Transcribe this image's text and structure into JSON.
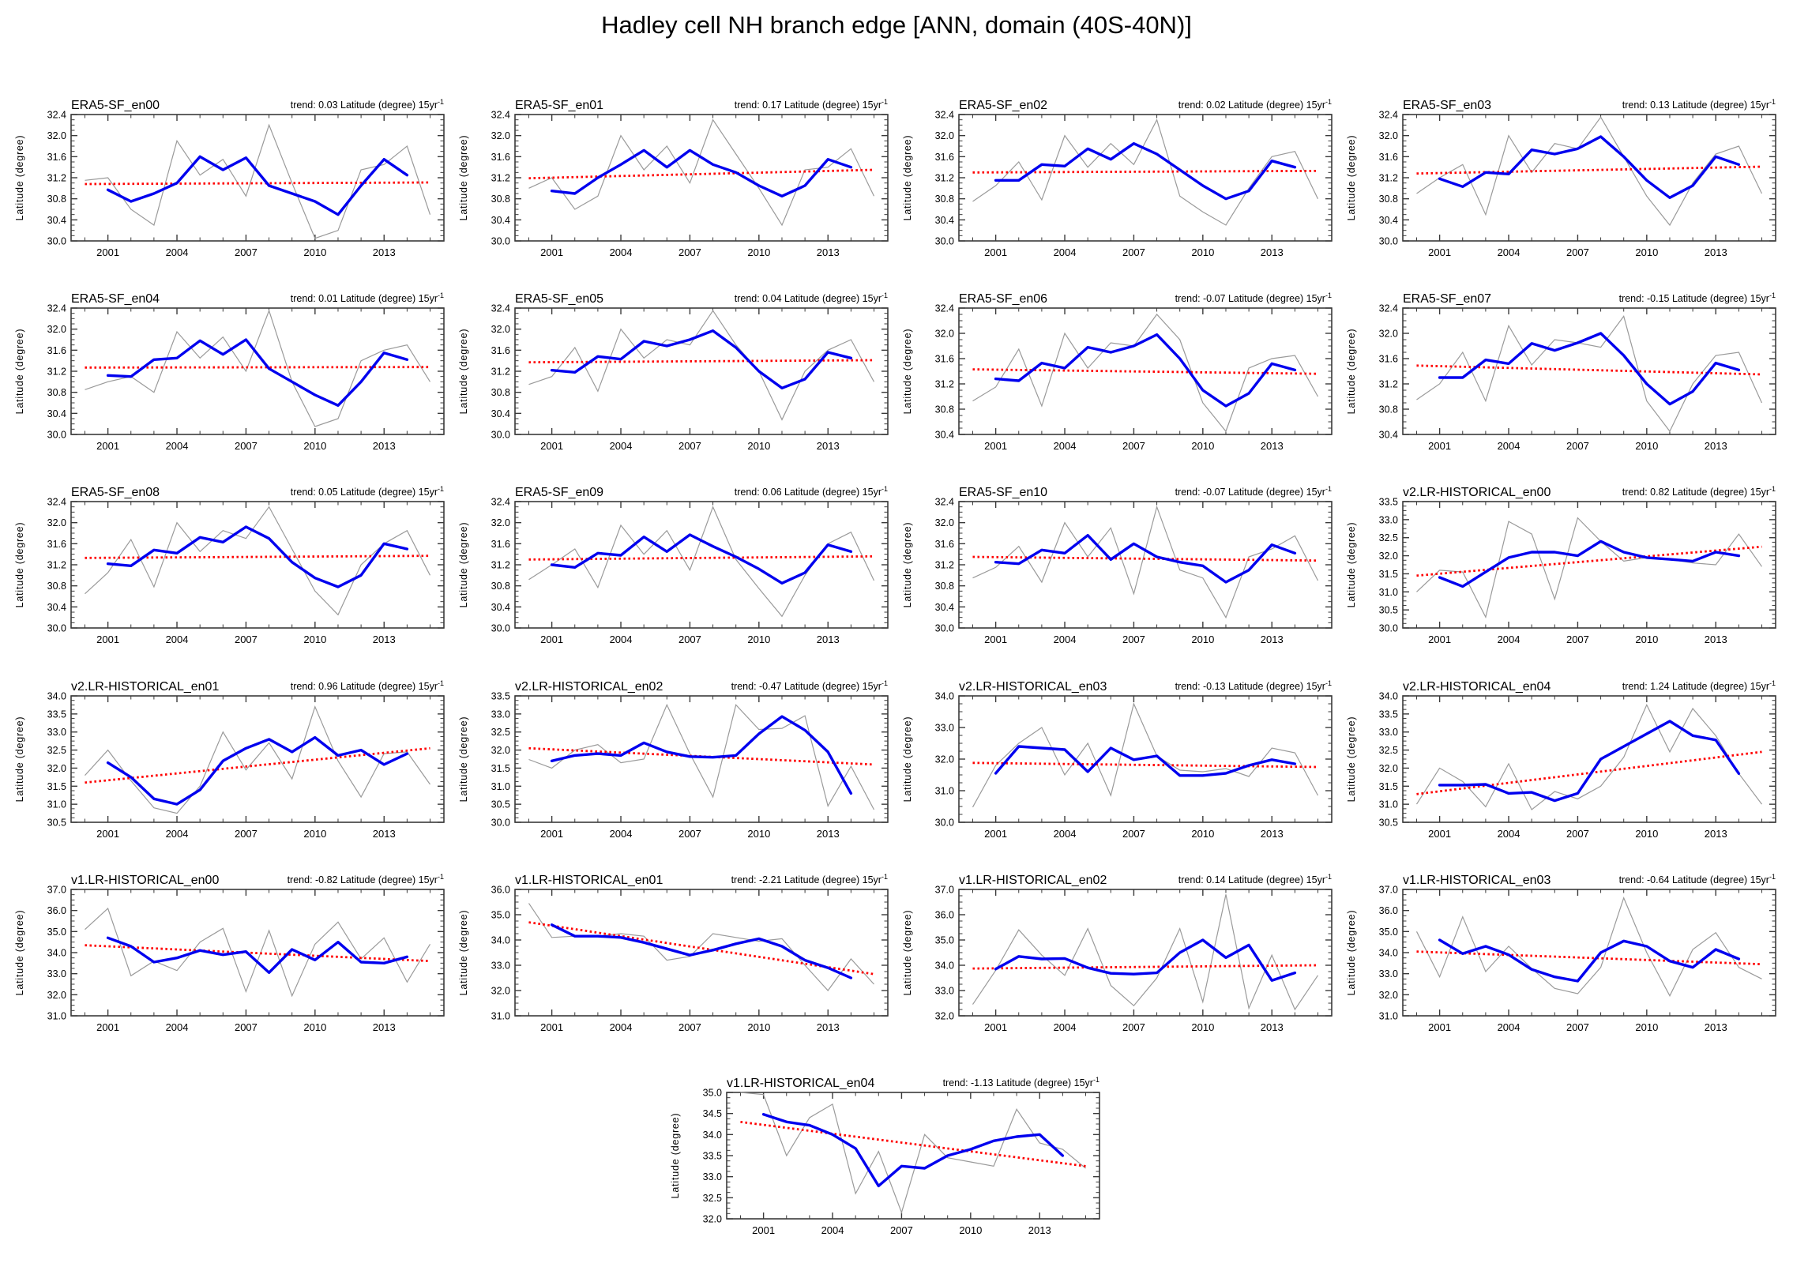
{
  "page_title": "Hadley cell NH branch edge [ANN, domain (40S-40N)]",
  "axis": {
    "ylabel": "Latitude (degree)",
    "xtick_labels": [
      "2001",
      "2004",
      "2007",
      "2010",
      "2013"
    ],
    "xticks": [
      2001,
      2004,
      2007,
      2010,
      2013
    ],
    "xlim": [
      1999.4,
      2015.6
    ],
    "trend_prefix": "trend:",
    "trend_suffix": "Latitude (degree) 15yr",
    "trend_exponent": "-1",
    "years_raw": [
      2000,
      2001,
      2002,
      2003,
      2004,
      2005,
      2006,
      2007,
      2008,
      2009,
      2010,
      2011,
      2012,
      2013,
      2014,
      2015
    ],
    "years_smoothed": [
      2001,
      2002,
      2003,
      2004,
      2005,
      2006,
      2007,
      2008,
      2009,
      2010,
      2011,
      2012,
      2013,
      2014
    ],
    "trend_line_years": [
      2000,
      2015
    ]
  },
  "colors": {
    "raw_line": "#9a9a9a",
    "smoothed_line": "#0000ee",
    "trend_line": "#ff0000",
    "frame": "#3a3a3a",
    "text": "#000000"
  },
  "chart_data": [
    {
      "type": "line",
      "title": "ERA5-SF_en00",
      "trend": "0.03",
      "ylim": [
        30.0,
        32.4
      ],
      "ystep": 0.4,
      "raw": [
        31.15,
        31.2,
        30.6,
        30.3,
        31.9,
        31.25,
        31.55,
        30.85,
        32.2,
        31.1,
        30.05,
        30.2,
        31.35,
        31.45,
        31.8,
        30.5
      ],
      "smoothed": [
        30.97,
        30.75,
        30.9,
        31.1,
        31.6,
        31.35,
        31.58,
        31.05,
        30.9,
        30.75,
        30.5,
        31.05,
        31.55,
        31.25
      ],
      "trend_line": [
        31.08,
        31.11
      ]
    },
    {
      "type": "line",
      "title": "ERA5-SF_en01",
      "trend": "0.17",
      "ylim": [
        30.0,
        32.4
      ],
      "ystep": 0.4,
      "raw": [
        31.0,
        31.2,
        30.6,
        30.85,
        32.0,
        31.35,
        31.8,
        31.1,
        32.3,
        31.65,
        31.0,
        30.3,
        31.35,
        31.4,
        31.75,
        30.85
      ],
      "smoothed": [
        30.95,
        30.9,
        31.2,
        31.45,
        31.72,
        31.4,
        31.72,
        31.45,
        31.3,
        31.05,
        30.85,
        31.05,
        31.55,
        31.4
      ],
      "trend_line": [
        31.19,
        31.35
      ]
    },
    {
      "type": "line",
      "title": "ERA5-SF_en02",
      "trend": "0.02",
      "ylim": [
        30.0,
        32.4
      ],
      "ystep": 0.4,
      "raw": [
        30.75,
        31.05,
        31.5,
        30.78,
        32.0,
        31.4,
        31.85,
        31.45,
        32.3,
        30.85,
        30.55,
        30.3,
        31.0,
        31.6,
        31.7,
        30.8
      ],
      "smoothed": [
        31.15,
        31.15,
        31.45,
        31.42,
        31.75,
        31.55,
        31.85,
        31.65,
        31.35,
        31.05,
        30.8,
        30.95,
        31.52,
        31.4
      ],
      "trend_line": [
        31.3,
        31.33
      ]
    },
    {
      "type": "line",
      "title": "ERA5-SF_en03",
      "trend": "0.13",
      "ylim": [
        30.0,
        32.4
      ],
      "ystep": 0.4,
      "raw": [
        30.9,
        31.2,
        31.45,
        30.5,
        32.0,
        31.3,
        31.85,
        31.75,
        32.35,
        31.6,
        30.85,
        30.3,
        31.1,
        31.65,
        31.8,
        30.9
      ],
      "smoothed": [
        31.18,
        31.03,
        31.3,
        31.27,
        31.73,
        31.65,
        31.75,
        31.98,
        31.6,
        31.15,
        30.82,
        31.05,
        31.6,
        31.45
      ],
      "trend_line": [
        31.28,
        31.41
      ]
    },
    {
      "type": "line",
      "title": "ERA5-SF_en04",
      "trend": "0.01",
      "ylim": [
        30.0,
        32.4
      ],
      "ystep": 0.4,
      "raw": [
        30.85,
        31.0,
        31.1,
        30.8,
        31.95,
        31.45,
        31.85,
        31.2,
        32.35,
        31.0,
        30.15,
        30.3,
        31.4,
        31.6,
        31.7,
        31.0
      ],
      "smoothed": [
        31.12,
        31.1,
        31.42,
        31.45,
        31.78,
        31.52,
        31.8,
        31.25,
        31.0,
        30.75,
        30.55,
        31.0,
        31.55,
        31.42
      ],
      "trend_line": [
        31.27,
        31.28
      ]
    },
    {
      "type": "line",
      "title": "ERA5-SF_en05",
      "trend": "0.04",
      "ylim": [
        30.0,
        32.4
      ],
      "ystep": 0.4,
      "raw": [
        30.95,
        31.1,
        31.65,
        30.82,
        32.0,
        31.45,
        31.8,
        31.7,
        32.35,
        31.7,
        31.2,
        30.28,
        31.2,
        31.6,
        31.8,
        31.0
      ],
      "smoothed": [
        31.22,
        31.18,
        31.48,
        31.43,
        31.77,
        31.68,
        31.8,
        31.97,
        31.65,
        31.2,
        30.88,
        31.05,
        31.56,
        31.45
      ],
      "trend_line": [
        31.37,
        31.41
      ]
    },
    {
      "type": "line",
      "title": "ERA5-SF_en06",
      "trend": "-0.07",
      "ylim": [
        30.4,
        32.4
      ],
      "ystep": 0.4,
      "raw": [
        30.93,
        31.15,
        31.75,
        30.85,
        32.0,
        31.45,
        31.85,
        31.8,
        32.3,
        31.9,
        30.9,
        30.45,
        31.45,
        31.6,
        31.65,
        31.0
      ],
      "smoothed": [
        31.28,
        31.25,
        31.53,
        31.45,
        31.78,
        31.7,
        31.8,
        31.98,
        31.6,
        31.1,
        30.85,
        31.05,
        31.52,
        31.42
      ],
      "trend_line": [
        31.43,
        31.36
      ]
    },
    {
      "type": "line",
      "title": "ERA5-SF_en07",
      "trend": "-0.15",
      "ylim": [
        30.4,
        32.4
      ],
      "ystep": 0.4,
      "raw": [
        30.95,
        31.2,
        31.7,
        30.93,
        32.12,
        31.5,
        31.9,
        31.85,
        31.78,
        32.27,
        30.93,
        30.45,
        31.2,
        31.65,
        31.7,
        30.9
      ],
      "smoothed": [
        31.3,
        31.3,
        31.58,
        31.52,
        31.84,
        31.73,
        31.85,
        32.0,
        31.65,
        31.2,
        30.88,
        31.08,
        31.53,
        31.42
      ],
      "trend_line": [
        31.49,
        31.35
      ]
    },
    {
      "type": "line",
      "title": "ERA5-SF_en08",
      "trend": "0.05",
      "ylim": [
        30.0,
        32.4
      ],
      "ystep": 0.4,
      "raw": [
        30.65,
        31.05,
        31.68,
        30.78,
        32.0,
        31.45,
        31.85,
        31.7,
        32.3,
        31.5,
        30.7,
        30.25,
        31.2,
        31.6,
        31.85,
        31.0
      ],
      "smoothed": [
        31.22,
        31.18,
        31.48,
        31.42,
        31.72,
        31.63,
        31.92,
        31.7,
        31.25,
        30.95,
        30.78,
        31.0,
        31.6,
        31.5
      ],
      "trend_line": [
        31.33,
        31.37
      ]
    },
    {
      "type": "line",
      "title": "ERA5-SF_en09",
      "trend": "0.06",
      "ylim": [
        30.0,
        32.4
      ],
      "ystep": 0.4,
      "raw": [
        30.92,
        31.2,
        31.5,
        30.77,
        31.95,
        31.4,
        31.85,
        31.1,
        32.3,
        31.3,
        30.75,
        30.22,
        31.0,
        31.6,
        31.82,
        30.9
      ],
      "smoothed": [
        31.2,
        31.15,
        31.42,
        31.38,
        31.73,
        31.45,
        31.77,
        31.55,
        31.35,
        31.12,
        30.85,
        31.05,
        31.58,
        31.45
      ],
      "trend_line": [
        31.3,
        31.36
      ]
    },
    {
      "type": "line",
      "title": "ERA5-SF_en10",
      "trend": "-0.07",
      "ylim": [
        30.0,
        32.4
      ],
      "ystep": 0.4,
      "raw": [
        30.95,
        31.15,
        31.55,
        30.87,
        32.0,
        31.35,
        31.9,
        30.65,
        32.3,
        31.1,
        30.95,
        30.2,
        31.35,
        31.5,
        31.75,
        30.9
      ],
      "smoothed": [
        31.25,
        31.22,
        31.48,
        31.42,
        31.76,
        31.3,
        31.6,
        31.35,
        31.25,
        31.18,
        30.87,
        31.1,
        31.58,
        31.42
      ],
      "trend_line": [
        31.35,
        31.28
      ]
    },
    {
      "type": "line",
      "title": "v2.LR-HISTORICAL_en00",
      "trend": "0.82",
      "ylim": [
        30.0,
        33.5
      ],
      "ystep": 0.5,
      "raw": [
        31.0,
        31.6,
        31.55,
        30.3,
        32.95,
        32.6,
        30.8,
        33.05,
        32.4,
        31.85,
        31.95,
        31.9,
        31.8,
        31.75,
        32.6,
        31.7
      ],
      "smoothed": [
        31.4,
        31.15,
        31.55,
        31.95,
        32.1,
        32.1,
        32.0,
        32.4,
        32.1,
        31.95,
        31.9,
        31.85,
        32.1,
        32.0
      ],
      "trend_line": [
        31.45,
        32.25
      ]
    },
    {
      "type": "line",
      "title": "v2.LR-HISTORICAL_en01",
      "trend": "0.96",
      "ylim": [
        30.5,
        34.0
      ],
      "ystep": 0.5,
      "raw": [
        31.8,
        32.5,
        31.65,
        30.9,
        30.75,
        31.5,
        33.0,
        31.95,
        32.7,
        31.7,
        33.7,
        32.2,
        31.2,
        32.4,
        32.45,
        31.55
      ],
      "smoothed": [
        32.15,
        31.75,
        31.15,
        31.0,
        31.4,
        32.2,
        32.55,
        32.8,
        32.45,
        32.85,
        32.35,
        32.5,
        32.1,
        32.4
      ],
      "trend_line": [
        31.6,
        32.55
      ]
    },
    {
      "type": "line",
      "title": "v2.LR-HISTORICAL_en02",
      "trend": "-0.47",
      "ylim": [
        30.0,
        33.5
      ],
      "ystep": 0.5,
      "raw": [
        31.74,
        31.5,
        32.0,
        32.15,
        31.65,
        31.75,
        33.25,
        31.9,
        30.7,
        33.25,
        32.57,
        32.6,
        32.95,
        30.45,
        31.55,
        30.35
      ],
      "smoothed": [
        31.7,
        31.85,
        31.9,
        31.85,
        32.2,
        31.95,
        31.82,
        31.8,
        31.85,
        32.45,
        32.93,
        32.55,
        31.95,
        30.8
      ],
      "trend_line": [
        32.05,
        31.6
      ]
    },
    {
      "type": "line",
      "title": "v2.LR-HISTORICAL_en03",
      "trend": "-0.13",
      "ylim": [
        30.0,
        34.0
      ],
      "ystep": 1.0,
      "raw": [
        30.48,
        31.8,
        32.5,
        33.0,
        31.5,
        32.5,
        30.85,
        33.75,
        32.1,
        31.65,
        31.6,
        31.7,
        31.45,
        32.35,
        32.2,
        30.85
      ],
      "smoothed": [
        31.55,
        32.4,
        32.35,
        32.3,
        31.6,
        32.35,
        31.98,
        32.1,
        31.48,
        31.48,
        31.55,
        31.8,
        31.98,
        31.85
      ],
      "trend_line": [
        31.88,
        31.75
      ]
    },
    {
      "type": "line",
      "title": "v2.LR-HISTORICAL_en04",
      "trend": "1.24",
      "ylim": [
        30.5,
        34.0
      ],
      "ystep": 0.5,
      "raw": [
        31.0,
        32.0,
        31.63,
        30.93,
        32.12,
        30.85,
        31.35,
        31.15,
        31.5,
        32.3,
        33.75,
        32.45,
        33.65,
        32.9,
        31.85,
        31.0
      ],
      "smoothed": [
        31.53,
        31.53,
        31.55,
        31.3,
        31.33,
        31.1,
        31.3,
        32.25,
        32.6,
        32.95,
        33.3,
        32.9,
        32.78,
        31.85
      ],
      "trend_line": [
        31.28,
        32.45
      ]
    },
    {
      "type": "line",
      "title": "v1.LR-HISTORICAL_en00",
      "trend": "-0.82",
      "ylim": [
        31.0,
        37.0
      ],
      "ystep": 1.0,
      "raw": [
        35.1,
        36.1,
        32.9,
        33.6,
        33.15,
        34.5,
        35.15,
        32.15,
        35.05,
        31.95,
        34.4,
        35.45,
        33.7,
        34.7,
        32.6,
        34.4
      ],
      "smoothed": [
        34.7,
        34.3,
        33.55,
        33.75,
        34.1,
        33.9,
        34.05,
        33.05,
        34.15,
        33.65,
        34.5,
        33.55,
        33.5,
        33.8
      ],
      "trend_line": [
        34.35,
        33.6
      ]
    },
    {
      "type": "line",
      "title": "v1.LR-HISTORICAL_en01",
      "trend": "-2.21",
      "ylim": [
        31.0,
        36.0
      ],
      "ystep": 1.0,
      "raw": [
        35.45,
        34.1,
        34.15,
        34.15,
        34.25,
        34.15,
        33.2,
        33.35,
        34.25,
        34.1,
        33.95,
        34.05,
        33.0,
        32.0,
        33.25,
        32.25
      ],
      "smoothed": [
        34.6,
        34.15,
        34.15,
        34.1,
        33.9,
        33.65,
        33.4,
        33.6,
        33.85,
        34.05,
        33.75,
        33.2,
        32.9,
        32.5
      ],
      "trend_line": [
        34.7,
        32.65
      ]
    },
    {
      "type": "line",
      "title": "v1.LR-HISTORICAL_en02",
      "trend": "0.14",
      "ylim": [
        32.0,
        37.0
      ],
      "ystep": 1.0,
      "raw": [
        32.45,
        33.8,
        35.4,
        34.4,
        33.6,
        35.45,
        33.2,
        32.4,
        33.5,
        35.45,
        32.55,
        36.8,
        32.3,
        34.4,
        32.25,
        33.6
      ],
      "smoothed": [
        33.85,
        34.35,
        34.25,
        34.27,
        33.9,
        33.68,
        33.65,
        33.7,
        34.5,
        35.0,
        34.3,
        34.8,
        33.4,
        33.7
      ],
      "trend_line": [
        33.87,
        34.0
      ]
    },
    {
      "type": "line",
      "title": "v1.LR-HISTORICAL_en03",
      "trend": "-0.64",
      "ylim": [
        31.0,
        37.0
      ],
      "ystep": 1.0,
      "raw": [
        35.0,
        32.85,
        35.7,
        33.1,
        34.3,
        33.25,
        32.3,
        32.05,
        33.3,
        36.6,
        34.0,
        31.95,
        34.15,
        34.95,
        33.3,
        32.75
      ],
      "smoothed": [
        34.6,
        33.95,
        34.3,
        33.9,
        33.2,
        32.85,
        32.65,
        34.0,
        34.55,
        34.3,
        33.6,
        33.3,
        34.15,
        33.7
      ],
      "trend_line": [
        34.05,
        33.45
      ]
    },
    {
      "type": "line",
      "title": "v1.LR-HISTORICAL_en04",
      "trend": "-1.13",
      "ylim": [
        32.0,
        35.0
      ],
      "ystep": 0.5,
      "raw": [
        35.0,
        34.95,
        33.5,
        34.4,
        34.72,
        32.6,
        33.6,
        32.15,
        34.0,
        33.45,
        33.35,
        33.25,
        34.6,
        33.8,
        33.65,
        33.2
      ],
      "smoothed": [
        34.48,
        34.3,
        34.22,
        34.0,
        33.67,
        32.78,
        33.25,
        33.2,
        33.5,
        33.65,
        33.85,
        33.95,
        34.0,
        33.5
      ],
      "trend_line": [
        34.3,
        33.25
      ]
    }
  ]
}
